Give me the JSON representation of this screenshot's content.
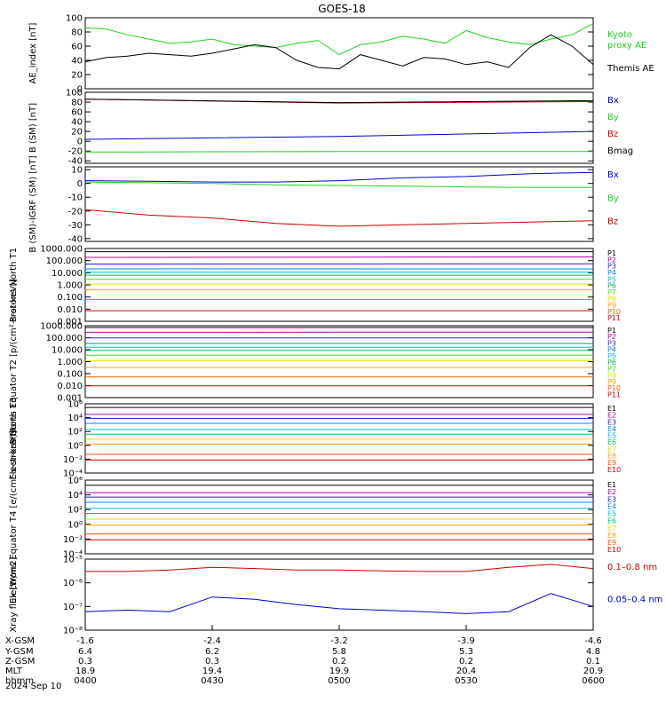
{
  "title": "GOES-18",
  "date_label": "2024 Sep 10",
  "colors": {
    "black": "#000000",
    "green": "#22d022",
    "red": "#cc0000",
    "blue": "#0000cc",
    "bright_green": "#00dd00",
    "p_channels": [
      "#000000",
      "#b000b0",
      "#2020c8",
      "#0080ff",
      "#00c0d0",
      "#00b060",
      "#40e020",
      "#e0e000",
      "#ffa000",
      "#ff6000",
      "#d00000",
      "#900000"
    ],
    "e_channels": [
      "#000000",
      "#b000b0",
      "#2020c8",
      "#0080ff",
      "#00c0d0",
      "#00c060",
      "#e0e000",
      "#ffa000",
      "#ff5000",
      "#d00000",
      "#a00000"
    ]
  },
  "chart_data": [
    {
      "type": "line",
      "name": "ae",
      "ylabel": "AE_index [nT]",
      "ylim": [
        0,
        100
      ],
      "yticks": [
        "0",
        "20",
        "40",
        "60",
        "80",
        "100"
      ],
      "legend": [
        "Kyoto proxy AE",
        "Themis AE"
      ],
      "legend_lines": [
        [
          "Kyoto",
          "proxy AE"
        ],
        [
          "Themis AE"
        ]
      ],
      "x": [
        "04:00",
        "04:05",
        "04:10",
        "04:15",
        "04:20",
        "04:25",
        "04:30",
        "04:35",
        "04:40",
        "04:45",
        "04:50",
        "04:55",
        "05:00",
        "05:05",
        "05:10",
        "05:15",
        "05:20",
        "05:25",
        "05:30",
        "05:35",
        "05:40",
        "05:45",
        "05:50",
        "05:55",
        "06:00"
      ],
      "series": [
        {
          "name": "Kyoto proxy AE",
          "color": "green",
          "values": [
            86,
            84,
            76,
            70,
            64,
            66,
            70,
            62,
            60,
            58,
            64,
            68,
            48,
            62,
            66,
            74,
            70,
            64,
            82,
            72,
            66,
            62,
            70,
            76,
            92
          ]
        },
        {
          "name": "Themis AE",
          "color": "black",
          "values": [
            38,
            44,
            46,
            50,
            48,
            46,
            50,
            56,
            62,
            58,
            40,
            30,
            28,
            48,
            40,
            32,
            44,
            42,
            34,
            38,
            30,
            58,
            76,
            60,
            34
          ]
        }
      ]
    },
    {
      "type": "line",
      "name": "b-sm",
      "ylabel": "B (SM) [nT]",
      "ylim": [
        -45,
        100
      ],
      "yticks": [
        "-40",
        "-20",
        "0",
        "20",
        "40",
        "60",
        "80",
        "100"
      ],
      "legend": [
        "Bx",
        "By",
        "Bz",
        "Bmag"
      ],
      "x": [
        "04:00",
        "05:00",
        "06:00"
      ],
      "series": [
        {
          "name": "Bx",
          "color": "blue",
          "values": [
            4,
            10,
            20
          ]
        },
        {
          "name": "By",
          "color": "green",
          "values": [
            -22,
            -21,
            -21
          ]
        },
        {
          "name": "Bz",
          "color": "red",
          "values": [
            86,
            78,
            81
          ]
        },
        {
          "name": "Bmag",
          "color": "black",
          "values": [
            86,
            79,
            83
          ]
        }
      ]
    },
    {
      "type": "line",
      "name": "b-igrf",
      "ylabel": "B (SM)-IGRF (SM) [nT]",
      "ylim": [
        -42,
        12
      ],
      "yticks": [
        "-40",
        "-30",
        "-20",
        "-10",
        "0",
        "10"
      ],
      "legend": [
        "Bx",
        "By",
        "Bz"
      ],
      "x": [
        "04:00",
        "04:15",
        "04:30",
        "04:45",
        "05:00",
        "05:15",
        "05:30",
        "05:45",
        "06:00"
      ],
      "series": [
        {
          "name": "Bx",
          "color": "blue",
          "values": [
            2,
            1.5,
            1,
            1,
            2,
            4,
            5,
            7,
            8
          ]
        },
        {
          "name": "By",
          "color": "green",
          "values": [
            1,
            0.5,
            0,
            -1,
            -1.5,
            -2,
            -2.5,
            -3,
            -3
          ]
        },
        {
          "name": "Bz",
          "color": "red",
          "values": [
            -19,
            -23,
            -25,
            -29,
            -31,
            -30,
            -29,
            -28,
            -27
          ]
        }
      ]
    },
    {
      "type": "line",
      "name": "protons-t1",
      "scale": "log",
      "ylabel": "Protons North T1",
      "ylim": [
        0.001,
        1000000
      ],
      "yticks": [
        "0.001",
        "0.010",
        "0.100",
        "1.000",
        "10.000",
        "100.000",
        "1000.000"
      ],
      "legend": [
        "P1",
        "P2",
        "P3",
        "P4",
        "P5",
        "P6",
        "P7",
        "P8",
        "P9",
        "P10",
        "P11"
      ],
      "series": [
        {
          "name": "P1",
          "values": [
            400000,
            400000
          ]
        },
        {
          "name": "P2",
          "values": [
            80000,
            90000
          ]
        },
        {
          "name": "P3",
          "values": [
            12000,
            13000
          ]
        },
        {
          "name": "P4",
          "values": [
            3000,
            3000
          ]
        },
        {
          "name": "P5",
          "values": [
            1200,
            1200
          ]
        },
        {
          "name": "P6",
          "values": [
            500,
            500
          ]
        },
        {
          "name": "P7",
          "values": [
            150,
            150
          ]
        },
        {
          "name": "P8",
          "values": [
            40,
            40
          ]
        },
        {
          "name": "P9",
          "values": [
            8,
            8
          ]
        },
        {
          "name": "P10",
          "values": [
            0.5,
            0.5
          ]
        },
        {
          "name": "P11",
          "values": [
            0.02,
            0.02
          ]
        }
      ]
    },
    {
      "type": "line",
      "name": "protons-t2",
      "scale": "log",
      "ylabel": "Protons Equator T2 [p/(cm²-s-sr-keV)]",
      "ylim": [
        0.001,
        1000000
      ],
      "yticks": [
        "0.001",
        "0.010",
        "0.100",
        "1.000",
        "10.000",
        "100.000",
        "1000.000"
      ],
      "legend": [
        "P1",
        "P2",
        "P3",
        "P4",
        "P5",
        "P6",
        "P7",
        "P8",
        "P9",
        "P10",
        "P11"
      ],
      "series": [
        {
          "name": "P1",
          "values": [
            600000,
            600000
          ]
        },
        {
          "name": "P2",
          "values": [
            150000,
            160000
          ]
        },
        {
          "name": "P3",
          "values": [
            30000,
            30000
          ]
        },
        {
          "name": "P4",
          "values": [
            6000,
            6000
          ]
        },
        {
          "name": "P5",
          "values": [
            2000,
            2000
          ]
        },
        {
          "name": "P6",
          "values": [
            800,
            800
          ]
        },
        {
          "name": "P7",
          "values": [
            200,
            200
          ]
        },
        {
          "name": "P8",
          "values": [
            40,
            40
          ]
        },
        {
          "name": "P9",
          "values": [
            6,
            6
          ]
        },
        {
          "name": "P10",
          "values": [
            0.4,
            0.4
          ]
        },
        {
          "name": "P11",
          "values": [
            0.03,
            0.03
          ]
        }
      ]
    },
    {
      "type": "line",
      "name": "electrons-t3",
      "scale": "log",
      "ylabel": "Electrons North T3",
      "ylim": [
        0.0001,
        1000000
      ],
      "yticks": [
        "10⁻⁴",
        "10⁻²",
        "10⁰",
        "10²",
        "10⁴",
        "10⁶"
      ],
      "legend": [
        "E1",
        "E2",
        "E3",
        "E4",
        "E5",
        "E6",
        "E7",
        "E8",
        "E9",
        "E10"
      ],
      "series": [
        {
          "name": "E1",
          "values": [
            300000,
            300000
          ]
        },
        {
          "name": "E2",
          "values": [
            30000,
            30000
          ]
        },
        {
          "name": "E3",
          "values": [
            8000,
            8000
          ]
        },
        {
          "name": "E4",
          "values": [
            1500,
            1500
          ]
        },
        {
          "name": "E5",
          "values": [
            200,
            200
          ]
        },
        {
          "name": "E6",
          "values": [
            40,
            40
          ]
        },
        {
          "name": "E7",
          "values": [
            8,
            8
          ]
        },
        {
          "name": "E8",
          "values": [
            1.5,
            1.5
          ]
        },
        {
          "name": "E9",
          "values": [
            0.05,
            0.05
          ]
        },
        {
          "name": "E10",
          "values": [
            0.008,
            0.008
          ]
        }
      ]
    },
    {
      "type": "line",
      "name": "electrons-t4",
      "scale": "log",
      "ylabel": "Electrons Equator T4 [e/(cm²-s-sr-keV)]",
      "ylim": [
        0.0001,
        1000000
      ],
      "yticks": [
        "10⁻⁴",
        "10⁻²",
        "10⁰",
        "10²",
        "10⁴",
        "10⁶"
      ],
      "legend": [
        "E1",
        "E2",
        "E3",
        "E4",
        "E5",
        "E6",
        "E7",
        "E8",
        "E9",
        "E10"
      ],
      "series": [
        {
          "name": "E1",
          "values": [
            200000,
            200000
          ]
        },
        {
          "name": "E2",
          "values": [
            20000,
            20000
          ]
        },
        {
          "name": "E3",
          "values": [
            5000,
            5000
          ]
        },
        {
          "name": "E4",
          "values": [
            1000,
            1000
          ]
        },
        {
          "name": "E5",
          "values": [
            150,
            150
          ]
        },
        {
          "name": "E6",
          "values": [
            30,
            30
          ]
        },
        {
          "name": "E7",
          "values": [
            5,
            5
          ]
        },
        {
          "name": "E8",
          "values": [
            0.8,
            0.8
          ]
        },
        {
          "name": "E9",
          "values": [
            0.05,
            0.05
          ]
        },
        {
          "name": "E10",
          "values": [
            0.008,
            0.008
          ]
        }
      ]
    },
    {
      "type": "line",
      "name": "xray",
      "scale": "log",
      "ylabel": "Xray flux [W/m2]",
      "ylim": [
        1e-08,
        1e-05
      ],
      "yticks": [
        "10⁻⁸",
        "10⁻⁷",
        "10⁻⁶",
        "10⁻⁵"
      ],
      "legend": [
        "0.1–0.8 nm",
        "0.05–0.4 nm"
      ],
      "x": [
        "04:00",
        "04:10",
        "04:20",
        "04:30",
        "04:40",
        "04:50",
        "05:00",
        "05:10",
        "05:20",
        "05:30",
        "05:40",
        "05:50",
        "06:00"
      ],
      "series": [
        {
          "name": "0.1–0.8 nm",
          "color": "red",
          "values": [
            3e-06,
            3e-06,
            3.5e-06,
            4.5e-06,
            4e-06,
            3.5e-06,
            3.5e-06,
            3.2e-06,
            3e-06,
            3e-06,
            4.5e-06,
            6e-06,
            4e-06
          ]
        },
        {
          "name": "0.05–0.4 nm",
          "color": "blue",
          "values": [
            6e-08,
            7e-08,
            6e-08,
            2.5e-07,
            2e-07,
            1.2e-07,
            8e-08,
            7e-08,
            6e-08,
            5e-08,
            6e-08,
            3.5e-07,
            1e-07
          ]
        }
      ]
    }
  ],
  "x_axis": {
    "rows": [
      "X-GSM",
      "Y-GSM",
      "Z-GSM",
      "MLT",
      "hhmm"
    ],
    "ticks": [
      {
        "values": [
          "-1.6",
          "6.4",
          "0.3",
          "18.9",
          "0400"
        ]
      },
      {
        "values": [
          "-2.4",
          "6.2",
          "0.3",
          "19.4",
          "0430"
        ]
      },
      {
        "values": [
          "-3.2",
          "5.8",
          "0.2",
          "19.9",
          "0500"
        ]
      },
      {
        "values": [
          "-3.9",
          "5.3",
          "0.2",
          "20.4",
          "0530"
        ]
      },
      {
        "values": [
          "-4.6",
          "4.8",
          "0.1",
          "20.9",
          "0600"
        ]
      }
    ]
  }
}
